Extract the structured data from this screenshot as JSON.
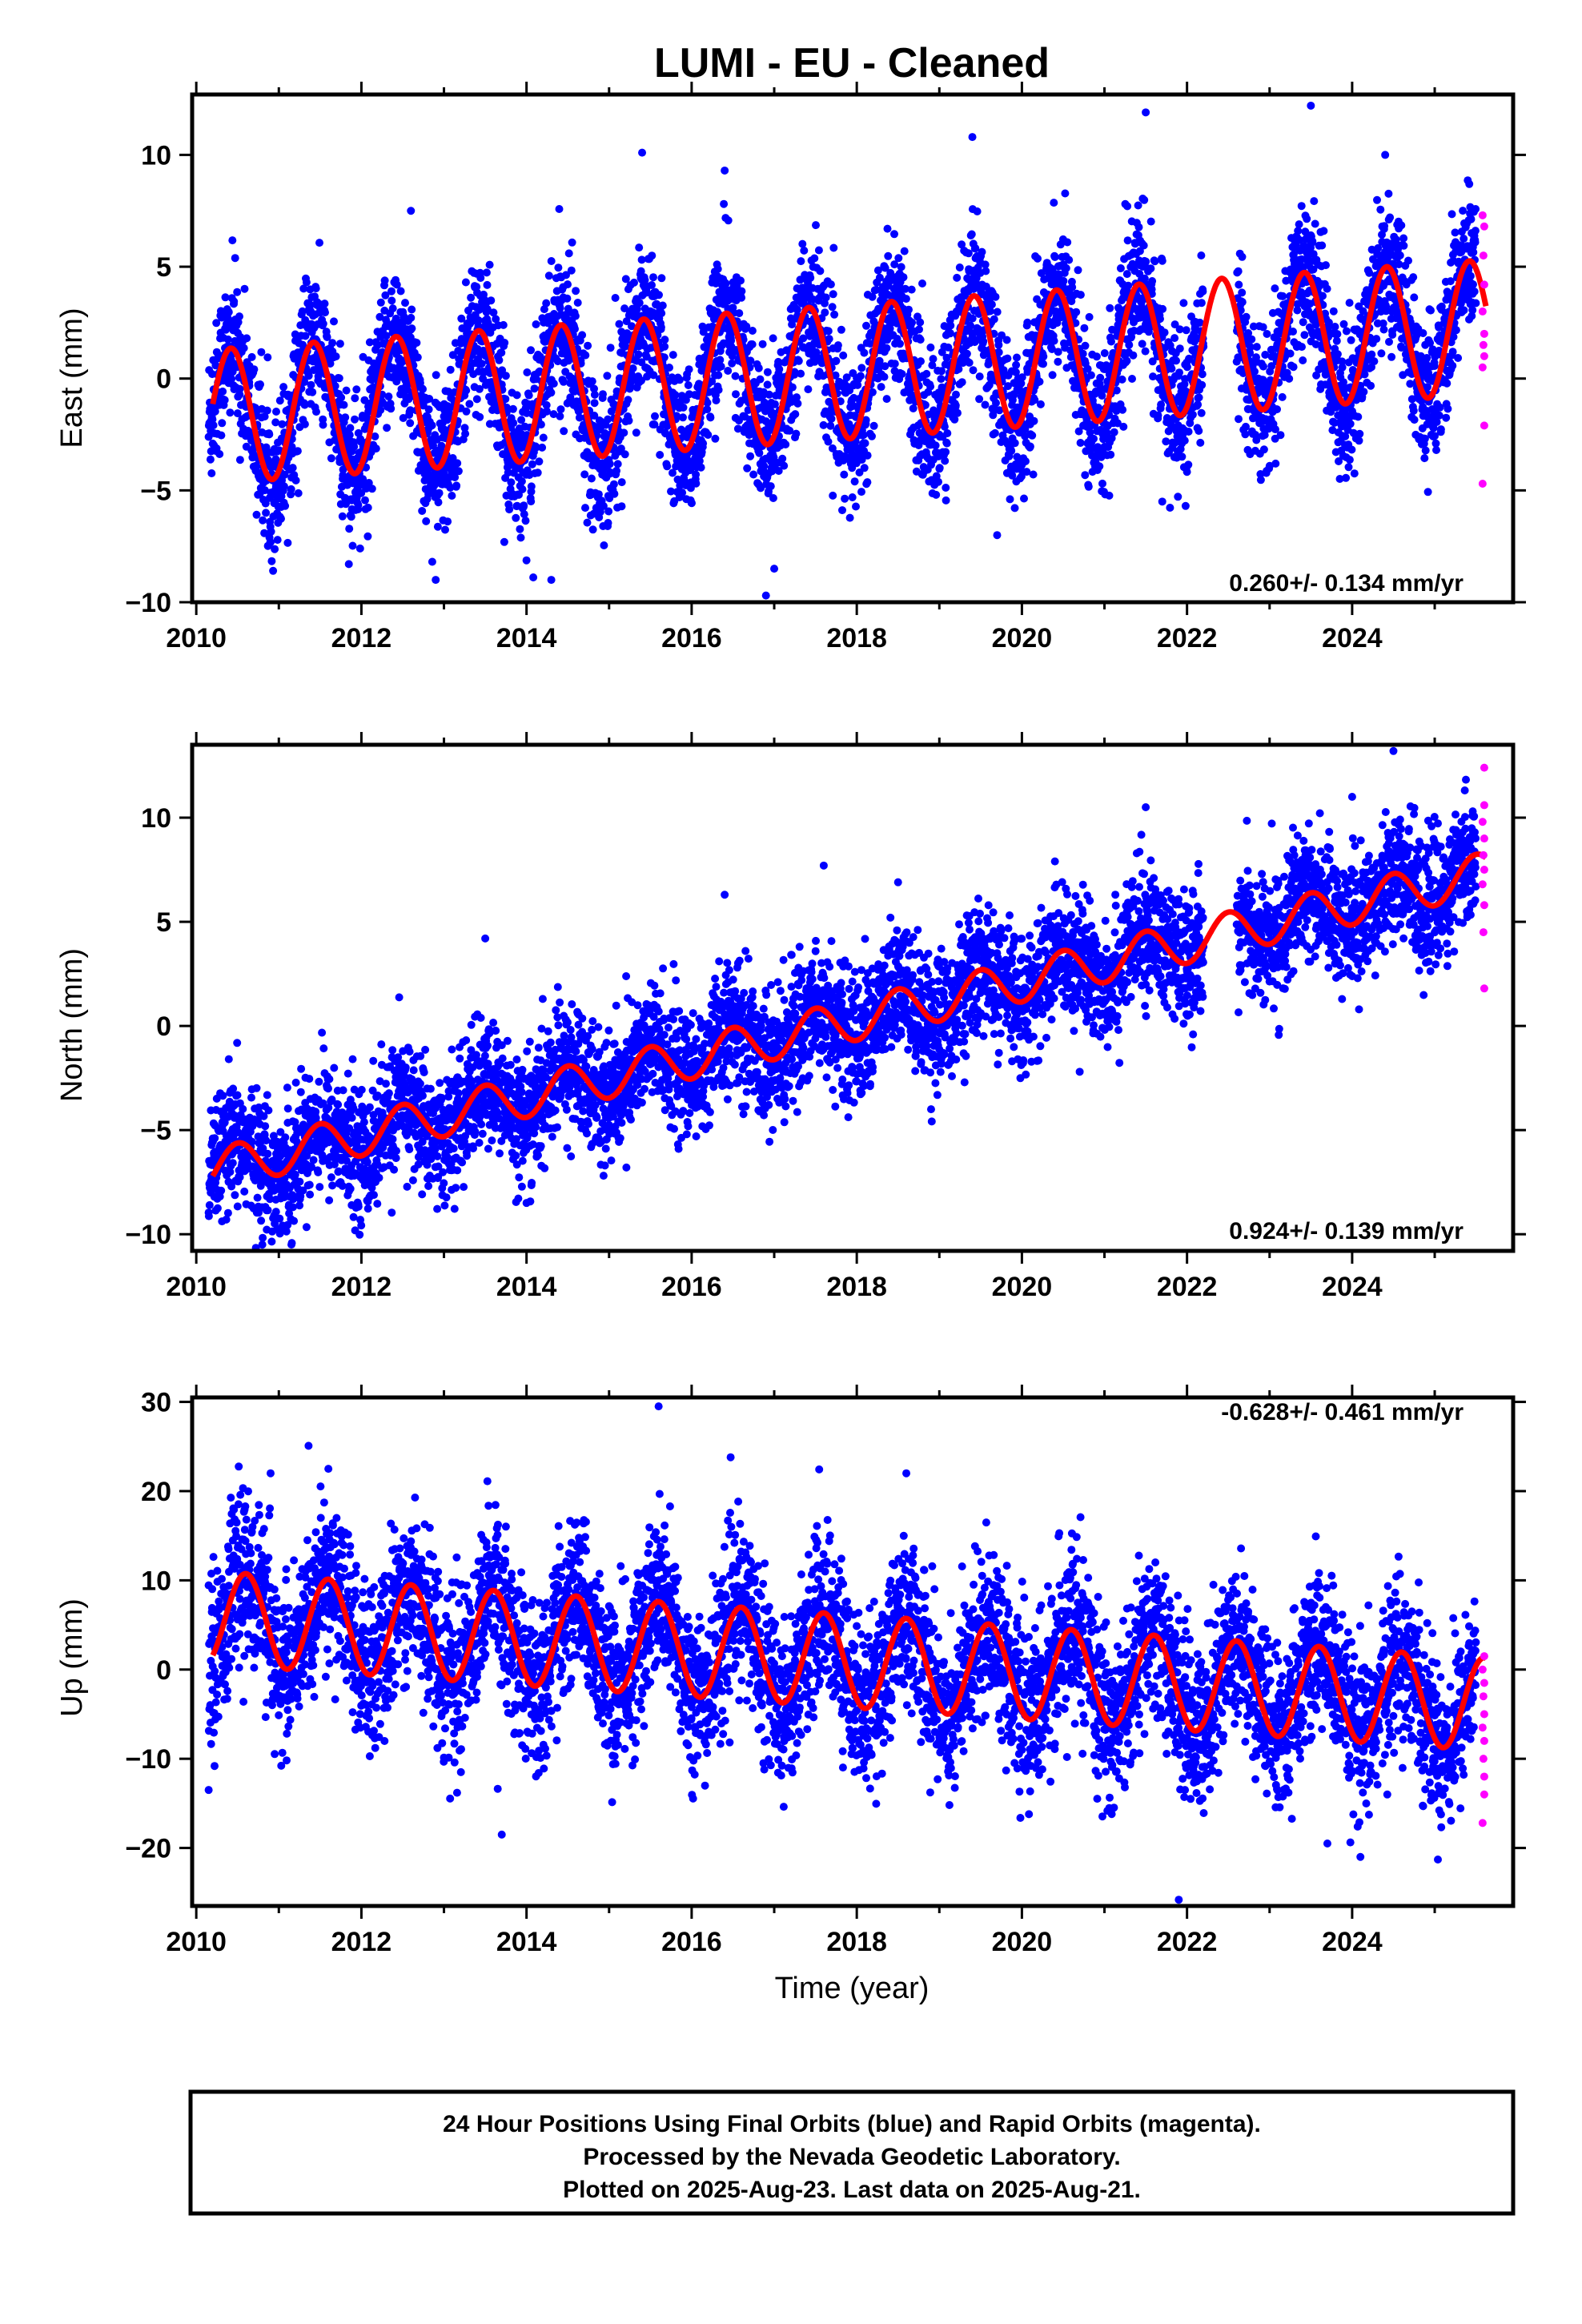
{
  "figure": {
    "title": "LUMI  - EU - Cleaned",
    "xlabel": "Time (year)",
    "footer": [
      "24 Hour Positions Using Final Orbits (blue) and Rapid Orbits (magenta).",
      "Processed by the Nevada Geodetic Laboratory.",
      "Plotted on 2025-Aug-23. Last data on 2025-Aug-21."
    ]
  },
  "colors": {
    "final": "#0000ff",
    "rapid": "#ff00ff",
    "model": "#ff0000",
    "frame": "#000000"
  },
  "chart_data": [
    {
      "type": "scatter",
      "id": "east",
      "ylabel": "East (mm)",
      "rate_label": "0.260+/- 0.134 mm/yr",
      "rate_position": "bottom-right",
      "xlim": [
        2009.95,
        2025.95
      ],
      "ylim": [
        -10,
        12.7
      ],
      "xticks": [
        2010,
        2012,
        2014,
        2016,
        2018,
        2020,
        2022,
        2024
      ],
      "yticks": [
        -10,
        -5,
        0,
        5,
        10
      ],
      "model": {
        "start": 2010.2,
        "end": 2025.62,
        "offset": -1.7,
        "rate_mm_per_yr": 0.26,
        "annual_amplitude": 3.0,
        "peak_month_fraction": 0.42
      },
      "series": [
        {
          "name": "Final Orbits",
          "color": "#0000ff",
          "x_range": [
            2010.15,
            2025.5
          ],
          "scatter_sd": 1.6,
          "outliers": [
            [
              2015.4,
              10.1
            ],
            [
              2016.4,
              9.3
            ],
            [
              2019.4,
              10.8
            ],
            [
              2021.5,
              11.9
            ],
            [
              2023.5,
              12.2
            ],
            [
              2012.6,
              7.5
            ],
            [
              2016.9,
              -9.7
            ],
            [
              2017.0,
              -8.5
            ],
            [
              2014.3,
              -9.0
            ],
            [
              2012.9,
              -9.0
            ],
            [
              2019.7,
              -7.0
            ],
            [
              2021.7,
              -5.5
            ],
            [
              2024.4,
              10.0
            ]
          ]
        },
        {
          "name": "Rapid Orbits",
          "color": "#ff00ff",
          "x_range": [
            2025.52,
            2025.64
          ],
          "points": [
            [
              2025.58,
              7.3
            ],
            [
              2025.6,
              6.8
            ],
            [
              2025.59,
              5.5
            ],
            [
              2025.6,
              4.2
            ],
            [
              2025.58,
              3.0
            ],
            [
              2025.6,
              2.0
            ],
            [
              2025.59,
              1.5
            ],
            [
              2025.6,
              1.0
            ],
            [
              2025.58,
              0.5
            ],
            [
              2025.6,
              -2.1
            ],
            [
              2025.58,
              -4.7
            ]
          ]
        }
      ]
    },
    {
      "type": "scatter",
      "id": "north",
      "ylabel": "North (mm)",
      "rate_label": "0.924+/- 0.139 mm/yr",
      "rate_position": "bottom-right",
      "xlim": [
        2009.95,
        2025.95
      ],
      "ylim": [
        -10.8,
        13.5
      ],
      "xticks": [
        2010,
        2012,
        2014,
        2016,
        2018,
        2020,
        2022,
        2024
      ],
      "yticks": [
        -10,
        -5,
        0,
        5,
        10
      ],
      "model": {
        "start": 2010.2,
        "end": 2025.62,
        "offset": -6.9,
        "rate_mm_per_yr": 0.924,
        "annual_amplitude": 1.0,
        "peak_month_fraction": 0.5
      },
      "series": [
        {
          "name": "Final Orbits",
          "color": "#0000ff",
          "x_range": [
            2010.15,
            2025.5
          ],
          "scatter_sd": 1.5,
          "outliers": [
            [
              2013.5,
              4.2
            ],
            [
              2016.4,
              6.3
            ],
            [
              2017.6,
              7.7
            ],
            [
              2018.5,
              6.9
            ],
            [
              2020.4,
              7.9
            ],
            [
              2021.5,
              10.5
            ],
            [
              2024.5,
              13.2
            ],
            [
              2024.0,
              11.0
            ],
            [
              2010.8,
              -10.5
            ],
            [
              2014.0,
              -8.5
            ],
            [
              2018.9,
              -4.0
            ],
            [
              2020.7,
              -2.2
            ]
          ]
        },
        {
          "name": "Rapid Orbits",
          "color": "#ff00ff",
          "x_range": [
            2025.52,
            2025.64
          ],
          "points": [
            [
              2025.6,
              12.4
            ],
            [
              2025.6,
              10.6
            ],
            [
              2025.58,
              9.8
            ],
            [
              2025.6,
              9.0
            ],
            [
              2025.59,
              8.2
            ],
            [
              2025.6,
              7.5
            ],
            [
              2025.58,
              6.8
            ],
            [
              2025.6,
              5.8
            ],
            [
              2025.59,
              4.5
            ],
            [
              2025.6,
              1.8
            ]
          ]
        }
      ]
    },
    {
      "type": "scatter",
      "id": "up",
      "ylabel": "Up (mm)",
      "rate_label": "-0.628+/- 0.461 mm/yr",
      "rate_position": "top-right",
      "xlim": [
        2009.95,
        2025.95
      ],
      "ylim": [
        -26.5,
        30.5
      ],
      "xticks": [
        2010,
        2012,
        2014,
        2016,
        2018,
        2020,
        2022,
        2024
      ],
      "yticks": [
        -20,
        -10,
        0,
        10,
        20,
        30
      ],
      "model": {
        "start": 2010.2,
        "end": 2025.62,
        "offset": 5.8,
        "rate_mm_per_yr": -0.628,
        "annual_amplitude": 5.2,
        "peak_month_fraction": 0.6
      },
      "series": [
        {
          "name": "Final Orbits",
          "color": "#0000ff",
          "x_range": [
            2010.15,
            2025.5
          ],
          "scatter_sd": 4.5,
          "outliers": [
            [
              2015.6,
              29.5
            ],
            [
              2011.6,
              22.5
            ],
            [
              2010.9,
              22.0
            ],
            [
              2018.6,
              22.0
            ],
            [
              2013.7,
              -18.5
            ],
            [
              2021.9,
              -25.8
            ],
            [
              2023.7,
              -19.5
            ],
            [
              2010.15,
              -13.5
            ],
            [
              2024.1,
              -21.0
            ]
          ]
        },
        {
          "name": "Rapid Orbits",
          "color": "#ff00ff",
          "x_range": [
            2025.52,
            2025.64
          ],
          "points": [
            [
              2025.6,
              1.5
            ],
            [
              2025.58,
              0.0
            ],
            [
              2025.6,
              -1.5
            ],
            [
              2025.59,
              -3.0
            ],
            [
              2025.6,
              -5.0
            ],
            [
              2025.58,
              -6.5
            ],
            [
              2025.6,
              -8.0
            ],
            [
              2025.59,
              -10.0
            ],
            [
              2025.6,
              -12.0
            ],
            [
              2025.6,
              -14.0
            ],
            [
              2025.58,
              -17.2
            ]
          ]
        }
      ]
    }
  ]
}
